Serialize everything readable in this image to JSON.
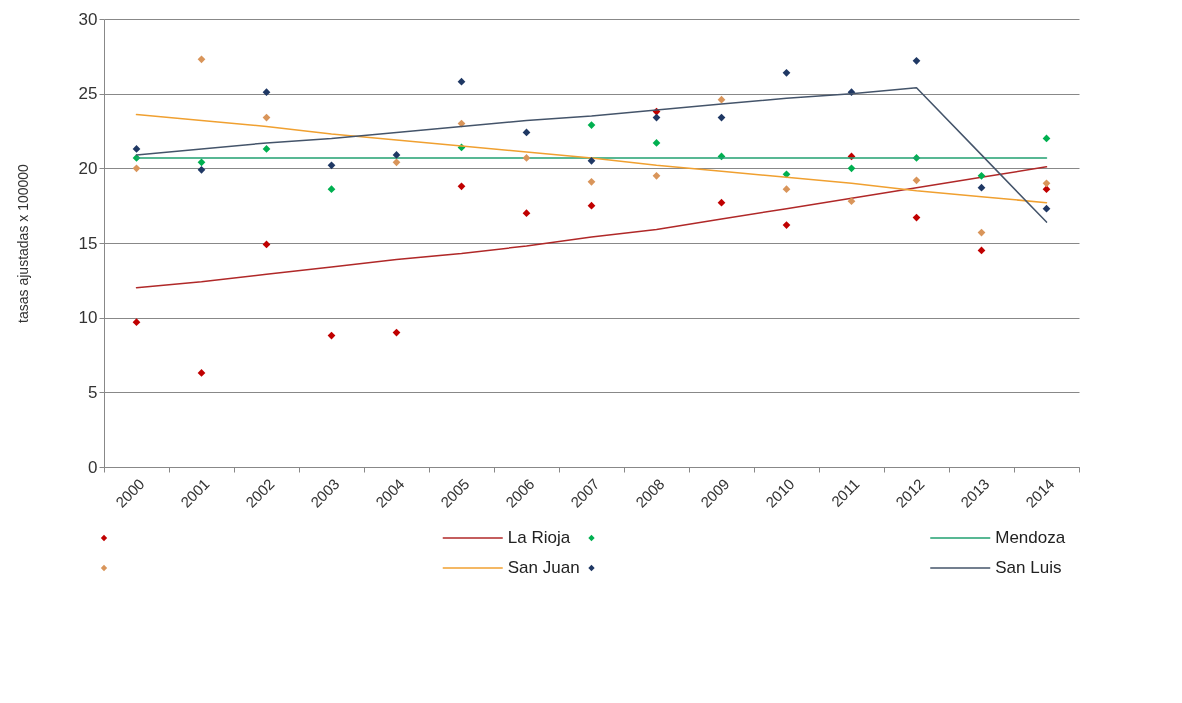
{
  "chart_data": {
    "type": "scatter",
    "ylabel": "tasas ajustadas x 100000",
    "categories": [
      "2000",
      "2001",
      "2002",
      "2003",
      "2004",
      "2005",
      "2006",
      "2007",
      "2008",
      "2009",
      "2010",
      "2011",
      "2012",
      "2013",
      "2014"
    ],
    "ylim": [
      0,
      30
    ],
    "yticks": [
      0,
      5,
      10,
      15,
      20,
      25,
      30
    ],
    "grid": "y",
    "legend": "bottom",
    "series": [
      {
        "color": "#c00000",
        "marker": "diamond",
        "values": [
          9.7,
          6.3,
          14.9,
          8.8,
          9.0,
          18.8,
          17.0,
          17.5,
          23.8,
          17.7,
          16.2,
          20.8,
          16.7,
          14.5,
          18.6
        ]
      },
      {
        "type": "line",
        "name": "La Rioja",
        "color": "#b02828",
        "marker": "none",
        "values": [
          12.0,
          12.4,
          12.9,
          13.4,
          13.9,
          14.3,
          14.8,
          15.4,
          15.9,
          16.6,
          17.3,
          18.0,
          18.7,
          19.4,
          20.1
        ]
      },
      {
        "color": "#00b050",
        "marker": "diamond",
        "values": [
          20.7,
          20.4,
          21.3,
          18.6,
          null,
          21.4,
          null,
          22.9,
          21.7,
          20.8,
          19.6,
          20.0,
          20.7,
          19.5,
          22.0
        ]
      },
      {
        "type": "line",
        "name": "Mendoza",
        "color": "#20a070",
        "marker": "none",
        "values": [
          20.7,
          20.7,
          20.7,
          20.7,
          20.7,
          20.7,
          20.7,
          20.7,
          20.7,
          20.7,
          20.7,
          20.7,
          20.7,
          20.7,
          20.7
        ]
      },
      {
        "color": "#d9955a",
        "marker": "diamond",
        "values": [
          20.0,
          27.3,
          23.4,
          null,
          20.4,
          23.0,
          20.7,
          19.1,
          19.5,
          24.6,
          18.6,
          17.8,
          19.2,
          15.7,
          19.0
        ]
      },
      {
        "type": "line",
        "name": "San Juan",
        "color": "#f0a030",
        "marker": "none",
        "values": [
          23.6,
          23.2,
          22.8,
          22.3,
          21.9,
          21.5,
          21.1,
          20.7,
          20.2,
          19.8,
          19.4,
          19.0,
          18.5,
          18.1,
          17.7
        ]
      },
      {
        "color": "#1f3864",
        "marker": "diamond",
        "values": [
          21.3,
          19.9,
          25.1,
          20.2,
          20.9,
          25.8,
          22.4,
          20.5,
          23.4,
          23.4,
          26.4,
          25.1,
          27.2,
          18.7,
          17.3
        ]
      },
      {
        "type": "line",
        "name": "San Luis",
        "color": "#44546a",
        "marker": "none",
        "values": [
          20.9,
          21.3,
          21.7,
          22.0,
          22.4,
          22.8,
          23.2,
          23.5,
          23.9,
          24.3,
          24.7,
          25.0,
          25.4,
          20.9,
          16.4
        ]
      }
    ]
  }
}
